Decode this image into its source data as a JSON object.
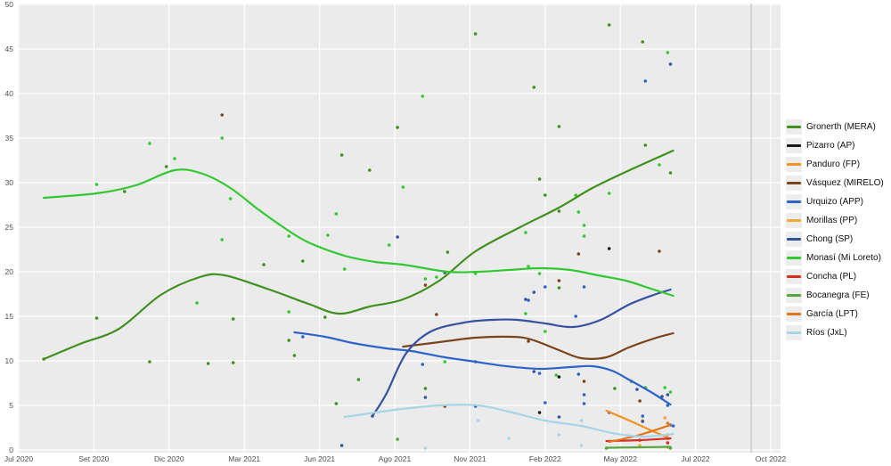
{
  "page": {
    "background": "#ffffff"
  },
  "chart_data": {
    "type": "scatter",
    "title": "",
    "subtitle": "",
    "panel_bg": "#ebebeb",
    "grid_color": "#ffffff",
    "axis_text_color": "#4d4d4d",
    "election_line": {
      "m": 26.3,
      "color": "#c9c9c9"
    },
    "x_axis": {
      "label": "",
      "unit": "months since Jul 2020",
      "range": [
        0,
        27
      ],
      "ticks": [
        {
          "label": "Jul 2020",
          "m": 0
        },
        {
          "label": "Set 2020",
          "m": 2.7
        },
        {
          "label": "Dic 2020",
          "m": 5.4
        },
        {
          "label": "Mar 2021",
          "m": 8.1
        },
        {
          "label": "Jun 2021",
          "m": 10.8
        },
        {
          "label": "Ago 2021",
          "m": 13.5
        },
        {
          "label": "Nov 2021",
          "m": 16.2
        },
        {
          "label": "Feb 2022",
          "m": 18.9
        },
        {
          "label": "May 2022",
          "m": 21.6
        },
        {
          "label": "Jul 2022",
          "m": 24.3
        },
        {
          "label": "Oct 2022",
          "m": 27
        }
      ]
    },
    "y_axis": {
      "label": "",
      "min": 0,
      "max": 50,
      "step": 5
    },
    "series": [
      {
        "name": "Gronerth (MERA)",
        "slug": "gronerth-mera",
        "color": "#41901f",
        "trend": [
          [
            0.9,
            10.2
          ],
          [
            2.2,
            11.9
          ],
          [
            3.6,
            13.6
          ],
          [
            5.1,
            17.4
          ],
          [
            6.5,
            19.4
          ],
          [
            7.4,
            19.6
          ],
          [
            9.0,
            18.0
          ],
          [
            10.4,
            16.4
          ],
          [
            11.5,
            15.3
          ],
          [
            12.6,
            16.1
          ],
          [
            13.8,
            16.9
          ],
          [
            15.1,
            19.0
          ],
          [
            16.4,
            22.3
          ],
          [
            18.0,
            25.0
          ],
          [
            19.4,
            27.2
          ],
          [
            20.6,
            29.4
          ],
          [
            22.0,
            31.5
          ],
          [
            23.5,
            33.6
          ]
        ],
        "points": [
          [
            0.9,
            10.2
          ],
          [
            2.8,
            14.8
          ],
          [
            3.8,
            29.0
          ],
          [
            4.7,
            9.9
          ],
          [
            5.3,
            31.8
          ],
          [
            6.8,
            9.7
          ],
          [
            7.7,
            14.7
          ],
          [
            7.7,
            9.8
          ],
          [
            8.8,
            20.8
          ],
          [
            9.7,
            12.3
          ],
          [
            9.9,
            10.6
          ],
          [
            10.2,
            21.2
          ],
          [
            11.0,
            14.9
          ],
          [
            11.4,
            5.2
          ],
          [
            11.6,
            33.1
          ],
          [
            12.2,
            7.9
          ],
          [
            12.6,
            31.4
          ],
          [
            13.6,
            36.2
          ],
          [
            14.6,
            6.9
          ],
          [
            15.4,
            22.2
          ],
          [
            16.4,
            46.7
          ],
          [
            18.5,
            40.7
          ],
          [
            18.7,
            30.4
          ],
          [
            18.9,
            28.6
          ],
          [
            19.4,
            36.3
          ],
          [
            19.4,
            18.2
          ],
          [
            19.4,
            26.8
          ],
          [
            21.2,
            47.7
          ],
          [
            21.4,
            6.9
          ],
          [
            22.0,
            7.7
          ],
          [
            22.4,
            45.8
          ],
          [
            22.5,
            34.2
          ],
          [
            23.4,
            31.1
          ]
        ]
      },
      {
        "name": "Pizarro (AP)",
        "slug": "pizarro-ap",
        "color": "#1a1a1a",
        "trend": [],
        "points": [
          [
            18.7,
            4.2
          ],
          [
            19.4,
            8.2
          ],
          [
            21.2,
            22.6
          ]
        ]
      },
      {
        "name": "Panduro (FP)",
        "slug": "panduro-fp",
        "color": "#f0941f",
        "trend": [
          [
            21.1,
            4.4
          ],
          [
            22.0,
            3.2
          ],
          [
            22.7,
            2.2
          ],
          [
            23.3,
            1.4
          ]
        ],
        "points": [
          [
            23.3,
            1.7
          ]
        ]
      },
      {
        "name": "Vásquez (MIRELO)",
        "slug": "vasquez-mirelo",
        "color": "#7a441c",
        "trend": [
          [
            13.8,
            11.6
          ],
          [
            15.1,
            12.1
          ],
          [
            16.4,
            12.6
          ],
          [
            17.7,
            12.7
          ],
          [
            18.4,
            12.4
          ],
          [
            19.4,
            11.2
          ],
          [
            20.2,
            10.3
          ],
          [
            21.1,
            10.4
          ],
          [
            21.9,
            11.5
          ],
          [
            22.8,
            12.5
          ],
          [
            23.5,
            13.1
          ]
        ],
        "points": [
          [
            7.3,
            37.6
          ],
          [
            14.6,
            18.5
          ],
          [
            15.0,
            15.2
          ],
          [
            15.3,
            4.9
          ],
          [
            18.3,
            12.2
          ],
          [
            19.4,
            19.0
          ],
          [
            20.1,
            22.0
          ],
          [
            20.3,
            7.7
          ],
          [
            22.3,
            5.5
          ],
          [
            23.0,
            22.3
          ]
        ]
      },
      {
        "name": "Urquizo (APP)",
        "slug": "urquizo-app",
        "color": "#2d63c8",
        "trend": [
          [
            9.9,
            13.2
          ],
          [
            11.0,
            12.7
          ],
          [
            12.0,
            12.0
          ],
          [
            13.2,
            11.4
          ],
          [
            14.1,
            11.1
          ],
          [
            15.3,
            10.4
          ],
          [
            16.4,
            9.9
          ],
          [
            17.5,
            9.4
          ],
          [
            18.7,
            9.1
          ],
          [
            19.8,
            9.3
          ],
          [
            20.6,
            9.4
          ],
          [
            21.3,
            8.9
          ],
          [
            21.9,
            7.9
          ],
          [
            22.7,
            6.5
          ],
          [
            23.4,
            5.1
          ]
        ],
        "points": [
          [
            10.2,
            12.7
          ],
          [
            14.5,
            9.6
          ],
          [
            16.4,
            9.9
          ],
          [
            16.4,
            4.9
          ],
          [
            18.3,
            16.8
          ],
          [
            18.7,
            8.6
          ],
          [
            18.9,
            18.3
          ],
          [
            18.9,
            5.3
          ],
          [
            20.0,
            15.0
          ],
          [
            20.1,
            8.5
          ],
          [
            20.3,
            18.3
          ],
          [
            20.3,
            6.2
          ],
          [
            20.3,
            5.2
          ],
          [
            21.2,
            4.2
          ],
          [
            22.4,
            3.8
          ],
          [
            22.5,
            41.4
          ],
          [
            23.3,
            5.0
          ],
          [
            23.4,
            2.8
          ],
          [
            23.5,
            2.7
          ]
        ]
      },
      {
        "name": "Morillas (PP)",
        "slug": "morillas-pp",
        "color": "#eeaa33",
        "trend": [],
        "points": [
          [
            22.3,
            0.5
          ],
          [
            22.4,
            3.3
          ],
          [
            23.2,
            3.6
          ],
          [
            23.3,
            0.3
          ]
        ]
      },
      {
        "name": "Chong (SP)",
        "slug": "chong-sp",
        "color": "#35529e",
        "trend": [
          [
            12.7,
            3.8
          ],
          [
            13.2,
            6.3
          ],
          [
            13.9,
            10.8
          ],
          [
            14.8,
            13.3
          ],
          [
            16.0,
            14.3
          ],
          [
            17.0,
            14.6
          ],
          [
            17.9,
            14.6
          ],
          [
            18.9,
            14.2
          ],
          [
            19.9,
            13.8
          ],
          [
            20.9,
            14.6
          ],
          [
            21.9,
            16.3
          ],
          [
            22.8,
            17.4
          ],
          [
            23.4,
            18.0
          ]
        ],
        "points": [
          [
            11.6,
            0.5
          ],
          [
            12.7,
            3.8
          ],
          [
            13.6,
            23.9
          ],
          [
            14.6,
            5.9
          ],
          [
            15.3,
            19.9
          ],
          [
            18.2,
            16.9
          ],
          [
            18.5,
            8.8
          ],
          [
            18.5,
            17.7
          ],
          [
            19.4,
            3.7
          ],
          [
            22.2,
            6.8
          ],
          [
            22.4,
            3.2
          ],
          [
            23.1,
            6.0
          ],
          [
            23.3,
            6.2
          ],
          [
            23.4,
            43.3
          ]
        ]
      },
      {
        "name": "Monasí (Mi Loreto)",
        "slug": "monasi-mi-loreto",
        "color": "#32c832",
        "trend": [
          [
            0.9,
            28.3
          ],
          [
            2.8,
            28.8
          ],
          [
            4.2,
            29.7
          ],
          [
            5.6,
            31.4
          ],
          [
            6.6,
            31.0
          ],
          [
            7.6,
            29.4
          ],
          [
            8.6,
            27.0
          ],
          [
            9.5,
            25.0
          ],
          [
            10.4,
            23.3
          ],
          [
            11.7,
            21.8
          ],
          [
            12.8,
            21.1
          ],
          [
            13.8,
            20.8
          ],
          [
            15.4,
            20.0
          ],
          [
            16.5,
            20.0
          ],
          [
            17.6,
            20.2
          ],
          [
            18.7,
            20.4
          ],
          [
            19.8,
            20.2
          ],
          [
            20.8,
            19.6
          ],
          [
            21.8,
            19.0
          ],
          [
            22.7,
            18.1
          ],
          [
            23.5,
            17.3
          ]
        ],
        "points": [
          [
            2.8,
            29.8
          ],
          [
            4.7,
            34.4
          ],
          [
            5.6,
            32.7
          ],
          [
            6.4,
            16.5
          ],
          [
            7.3,
            23.6
          ],
          [
            7.3,
            35.0
          ],
          [
            7.6,
            28.2
          ],
          [
            9.7,
            15.5
          ],
          [
            9.7,
            24.0
          ],
          [
            11.1,
            24.1
          ],
          [
            11.4,
            26.5
          ],
          [
            11.7,
            20.3
          ],
          [
            13.3,
            23.0
          ],
          [
            13.8,
            29.5
          ],
          [
            14.5,
            39.7
          ],
          [
            14.6,
            19.2
          ],
          [
            15.0,
            19.4
          ],
          [
            15.3,
            9.9
          ],
          [
            16.4,
            19.8
          ],
          [
            18.2,
            24.4
          ],
          [
            18.2,
            15.3
          ],
          [
            18.3,
            20.6
          ],
          [
            18.7,
            19.8
          ],
          [
            18.9,
            13.3
          ],
          [
            19.3,
            8.4
          ],
          [
            20.0,
            28.6
          ],
          [
            20.1,
            26.7
          ],
          [
            20.3,
            24.0
          ],
          [
            20.3,
            25.2
          ],
          [
            21.2,
            28.8
          ],
          [
            22.5,
            7.0
          ],
          [
            23.0,
            32.0
          ],
          [
            23.2,
            7.0
          ],
          [
            23.3,
            44.6
          ],
          [
            23.4,
            6.5
          ]
        ]
      },
      {
        "name": "Concha (PL)",
        "slug": "concha-pl",
        "color": "#d62d20",
        "trend": [
          [
            21.1,
            1.0
          ],
          [
            22.3,
            1.1
          ],
          [
            23.4,
            1.3
          ]
        ],
        "points": [
          [
            22.3,
            1.1
          ],
          [
            23.3,
            1.3
          ],
          [
            23.3,
            0.8
          ]
        ]
      },
      {
        "name": "Bocanegra (FE)",
        "slug": "bocanegra-fe",
        "color": "#55a63c",
        "trend": [
          [
            21.1,
            0.25
          ],
          [
            22.3,
            0.3
          ],
          [
            23.4,
            0.35
          ]
        ],
        "points": [
          [
            13.6,
            1.2
          ],
          [
            21.1,
            0.2
          ],
          [
            23.4,
            0.2
          ]
        ]
      },
      {
        "name": "García (LPT)",
        "slug": "garcia-lpt",
        "color": "#e2761b",
        "trend": [
          [
            21.2,
            0.9
          ],
          [
            22.3,
            1.7
          ],
          [
            23.4,
            2.8
          ]
        ],
        "points": [
          [
            23.3,
            3.0
          ]
        ]
      },
      {
        "name": "Ríos (JxL)",
        "slug": "rios-jxl",
        "color": "#a8d5e6",
        "trend": [
          [
            11.7,
            3.7
          ],
          [
            13.5,
            4.5
          ],
          [
            15.1,
            5.0
          ],
          [
            16.5,
            5.0
          ],
          [
            17.6,
            4.3
          ],
          [
            18.9,
            3.3
          ],
          [
            20.2,
            2.7
          ],
          [
            21.3,
            1.9
          ],
          [
            22.4,
            1.5
          ],
          [
            23.5,
            1.8
          ]
        ],
        "points": [
          [
            14.6,
            0.2
          ],
          [
            16.5,
            3.3
          ],
          [
            17.6,
            1.3
          ],
          [
            19.4,
            1.7
          ],
          [
            20.2,
            3.3
          ],
          [
            20.2,
            0.5
          ]
        ]
      }
    ]
  },
  "legend": {
    "position": "right"
  }
}
